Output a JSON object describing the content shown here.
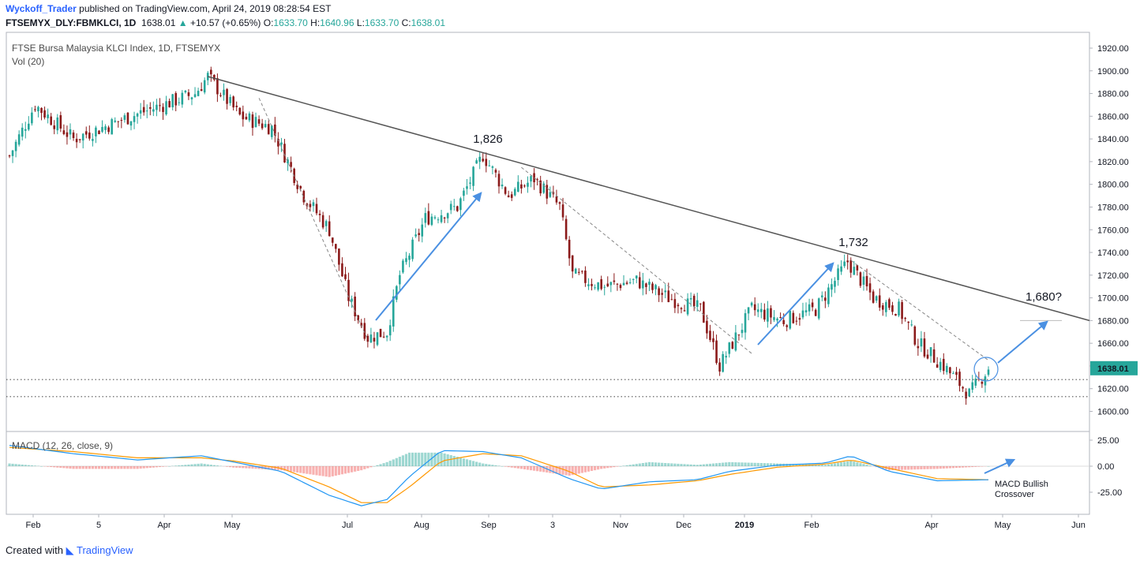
{
  "header": {
    "author": "Wyckoff_Trader",
    "published": "published on TradingView.com, April 24, 2019 08:28:54 EST",
    "symbol": "FTSEMYX_DLY:FBMKLCI, 1D",
    "last": "1638.01",
    "change": "+10.57 (+0.65%)",
    "o_label": "O:",
    "o_val": "1633.70",
    "h_label": "H:",
    "h_val": "1640.96",
    "l_label": "L:",
    "l_val": "1633.70",
    "c_label": "C:",
    "c_val": "1638.01"
  },
  "legend": {
    "title": "FTSE Bursa Malaysia KLCI Index, 1D, FTSEMYX",
    "vol": "Vol (20)",
    "macd": "MACD (12, 26, close, 9)"
  },
  "footer": {
    "created_with": "Created with",
    "brand": "TradingView"
  },
  "colors": {
    "up": "#26a69a",
    "down": "#8b1a1a",
    "accent": "#4a90e2",
    "macd_line": "#2196f3",
    "signal_line": "#ff9800",
    "price_badge": "#26a69a"
  },
  "chart_data": [
    {
      "type": "candlestick",
      "title": "FTSE Bursa Malaysia KLCI Index, 1D, FTSEMYX",
      "ylim": [
        1590,
        1930
      ],
      "y_ticks": [
        "1920.00",
        "1900.00",
        "1880.00",
        "1860.00",
        "1840.00",
        "1820.00",
        "1800.00",
        "1780.00",
        "1760.00",
        "1740.00",
        "1720.00",
        "1700.00",
        "1680.00",
        "1660.00",
        "1640.00",
        "1620.00",
        "1600.00"
      ],
      "x_ticks": [
        "Feb",
        "5",
        "Apr",
        "May",
        "Jul",
        "Aug",
        "Sep",
        "3",
        "Nov",
        "Dec",
        "2019",
        "Feb",
        "Apr",
        "May",
        "Jun"
      ],
      "last_price": "1638.01",
      "annotations": [
        "1,826",
        "1,732",
        "1,680?"
      ],
      "pivots": [
        {
          "day": 0,
          "price": 1825
        },
        {
          "day": 8,
          "price": 1870
        },
        {
          "day": 20,
          "price": 1840
        },
        {
          "day": 38,
          "price": 1860
        },
        {
          "day": 58,
          "price": 1880
        },
        {
          "day": 62,
          "price": 1895
        },
        {
          "day": 72,
          "price": 1860
        },
        {
          "day": 82,
          "price": 1850
        },
        {
          "day": 92,
          "price": 1790
        },
        {
          "day": 100,
          "price": 1760
        },
        {
          "day": 106,
          "price": 1700
        },
        {
          "day": 112,
          "price": 1665
        },
        {
          "day": 118,
          "price": 1670
        },
        {
          "day": 122,
          "price": 1720
        },
        {
          "day": 130,
          "price": 1770
        },
        {
          "day": 140,
          "price": 1780
        },
        {
          "day": 148,
          "price": 1826
        },
        {
          "day": 156,
          "price": 1790
        },
        {
          "day": 164,
          "price": 1805
        },
        {
          "day": 172,
          "price": 1780
        },
        {
          "day": 176,
          "price": 1720
        },
        {
          "day": 186,
          "price": 1710
        },
        {
          "day": 196,
          "price": 1715
        },
        {
          "day": 206,
          "price": 1700
        },
        {
          "day": 216,
          "price": 1690
        },
        {
          "day": 222,
          "price": 1640
        },
        {
          "day": 226,
          "price": 1660
        },
        {
          "day": 232,
          "price": 1690
        },
        {
          "day": 242,
          "price": 1680
        },
        {
          "day": 252,
          "price": 1690
        },
        {
          "day": 262,
          "price": 1732
        },
        {
          "day": 270,
          "price": 1700
        },
        {
          "day": 278,
          "price": 1690
        },
        {
          "day": 284,
          "price": 1660
        },
        {
          "day": 292,
          "price": 1640
        },
        {
          "day": 300,
          "price": 1615
        },
        {
          "day": 306,
          "price": 1638
        }
      ],
      "trendlines": [
        {
          "from_day": 62,
          "from_price": 1895,
          "to_day": 335,
          "to_price": 1680,
          "style": "solid"
        },
        {
          "from_day": 78,
          "from_price": 1876,
          "to_day": 112,
          "to_price": 1663,
          "style": "dashed"
        },
        {
          "from_day": 160,
          "from_price": 1815,
          "to_day": 232,
          "to_price": 1651,
          "style": "dashed"
        },
        {
          "from_day": 263,
          "from_price": 1733,
          "to_day": 306,
          "to_price": 1645,
          "style": "dashed"
        }
      ],
      "horizontal_levels": [
        1628,
        1613,
        1680
      ]
    },
    {
      "type": "line",
      "title": "MACD (12, 26, close, 9)",
      "ylim": [
        -45,
        35
      ],
      "y_ticks": [
        "25.00",
        "0.00",
        "-25.00"
      ],
      "series": [
        {
          "name": "MACD",
          "x": [
            0,
            20,
            40,
            60,
            70,
            85,
            100,
            110,
            118,
            125,
            135,
            148,
            160,
            175,
            185,
            200,
            215,
            225,
            240,
            255,
            263,
            275,
            290,
            306
          ],
          "values": [
            20,
            12,
            6,
            10,
            4,
            -5,
            -28,
            -38,
            -32,
            -10,
            15,
            14,
            8,
            -12,
            -22,
            -15,
            -13,
            -5,
            1,
            3,
            10,
            -5,
            -14,
            -13
          ]
        },
        {
          "name": "Signal",
          "x": [
            0,
            20,
            40,
            60,
            70,
            85,
            100,
            110,
            118,
            125,
            135,
            148,
            160,
            175,
            185,
            200,
            215,
            225,
            240,
            255,
            263,
            275,
            290,
            306
          ],
          "values": [
            18,
            14,
            8,
            8,
            5,
            -2,
            -20,
            -35,
            -35,
            -20,
            5,
            12,
            10,
            -5,
            -20,
            -18,
            -14,
            -8,
            -1,
            2,
            6,
            -2,
            -12,
            -13
          ]
        }
      ],
      "annotation": "MACD Bullish Crossover"
    }
  ]
}
